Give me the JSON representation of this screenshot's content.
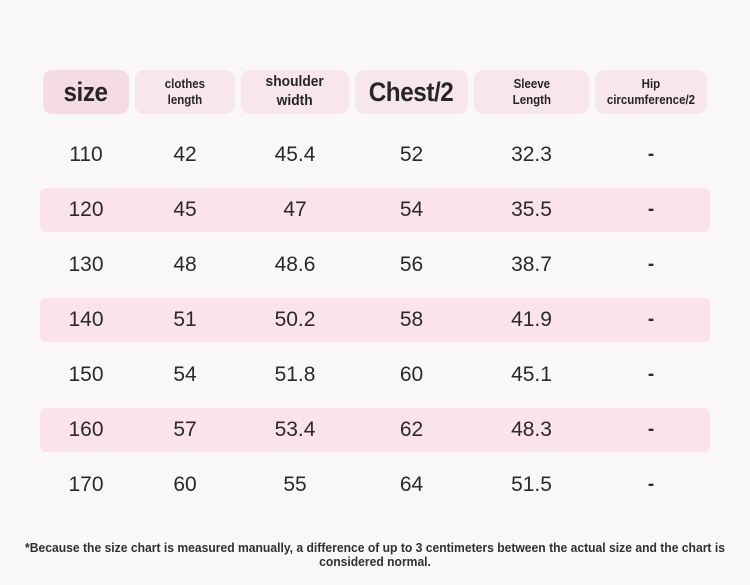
{
  "page": {
    "background": "#faf7f8"
  },
  "colors": {
    "header_pill": "#f8e6ed",
    "header_pill_size": "#f5dbe5",
    "stripe": "#fae3ea",
    "text": "#2a2a2a"
  },
  "table": {
    "columns": [
      {
        "id": "size",
        "lines": [
          "size"
        ]
      },
      {
        "id": "clothes-length",
        "lines": [
          "clothes",
          "length"
        ]
      },
      {
        "id": "shoulder-width",
        "lines": [
          "shoulder",
          "width"
        ]
      },
      {
        "id": "chest-half",
        "lines": [
          "Chest/2"
        ]
      },
      {
        "id": "sleeve-length",
        "lines": [
          "Sleeve",
          "Length"
        ]
      },
      {
        "id": "hip-circumference-half",
        "lines": [
          "Hip",
          "circumference/2"
        ]
      }
    ],
    "rows": [
      {
        "cells": [
          "110",
          "42",
          "45.4",
          "52",
          "32.3",
          "-"
        ]
      },
      {
        "cells": [
          "120",
          "45",
          "47",
          "54",
          "35.5",
          "-"
        ]
      },
      {
        "cells": [
          "130",
          "48",
          "48.6",
          "56",
          "38.7",
          "-"
        ]
      },
      {
        "cells": [
          "140",
          "51",
          "50.2",
          "58",
          "41.9",
          "-"
        ]
      },
      {
        "cells": [
          "150",
          "54",
          "51.8",
          "60",
          "45.1",
          "-"
        ]
      },
      {
        "cells": [
          "160",
          "57",
          "53.4",
          "62",
          "48.3",
          "-"
        ]
      },
      {
        "cells": [
          "170",
          "60",
          "55",
          "64",
          "51.5",
          "-"
        ]
      }
    ]
  },
  "footnote": "*Because the size chart is measured manually, a difference of up to 3 centimeters between the actual size and the chart is considered normal."
}
